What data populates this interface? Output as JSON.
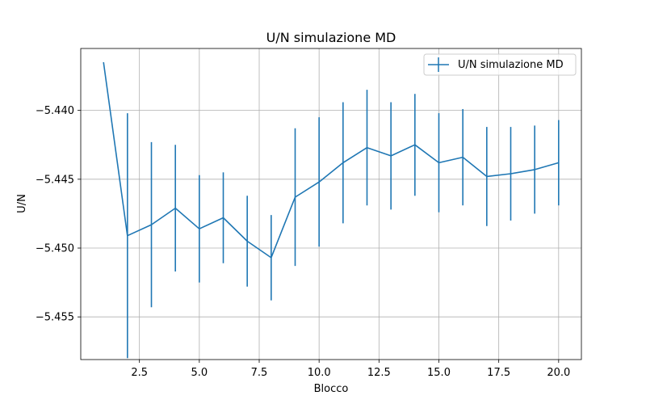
{
  "chart_data": {
    "type": "line",
    "title": "U/N simulazione MD",
    "xlabel": "Blocco",
    "ylabel": "U/N",
    "xlim": [
      0.05,
      20.95
    ],
    "ylim": [
      -5.4581,
      -5.4355
    ],
    "grid": true,
    "legend_position": "top-right",
    "x_ticks": [
      2.5,
      5.0,
      7.5,
      10.0,
      12.5,
      15.0,
      17.5,
      20.0
    ],
    "x_tick_labels": [
      "2.5",
      "5.0",
      "7.5",
      "10.0",
      "12.5",
      "15.0",
      "17.5",
      "20.0"
    ],
    "y_ticks": [
      -5.44,
      -5.445,
      -5.45,
      -5.455
    ],
    "y_tick_labels": [
      "−5.440",
      "−5.445",
      "−5.450",
      "−5.455"
    ],
    "series": [
      {
        "name": "U/N simulazione MD",
        "color": "#1f77b4",
        "x": [
          1,
          2,
          3,
          4,
          5,
          6,
          7,
          8,
          9,
          10,
          11,
          12,
          13,
          14,
          15,
          16,
          17,
          18,
          19,
          20
        ],
        "y": [
          -5.4365,
          -5.4491,
          -5.4483,
          -5.4471,
          -5.4486,
          -5.4478,
          -5.4495,
          -5.4507,
          -5.4463,
          -5.4452,
          -5.4438,
          -5.4427,
          -5.4433,
          -5.4425,
          -5.4438,
          -5.4434,
          -5.4448,
          -5.4446,
          -5.4443,
          -5.4438
        ],
        "yerr": [
          0,
          0.0089,
          0.006,
          0.0046,
          0.0039,
          0.0033,
          0.0033,
          0.0031,
          0.005,
          0.0047,
          0.0044,
          0.0042,
          0.0039,
          0.0037,
          0.0036,
          0.0035,
          0.0036,
          0.0034,
          0.0032,
          0.0031
        ]
      }
    ]
  }
}
